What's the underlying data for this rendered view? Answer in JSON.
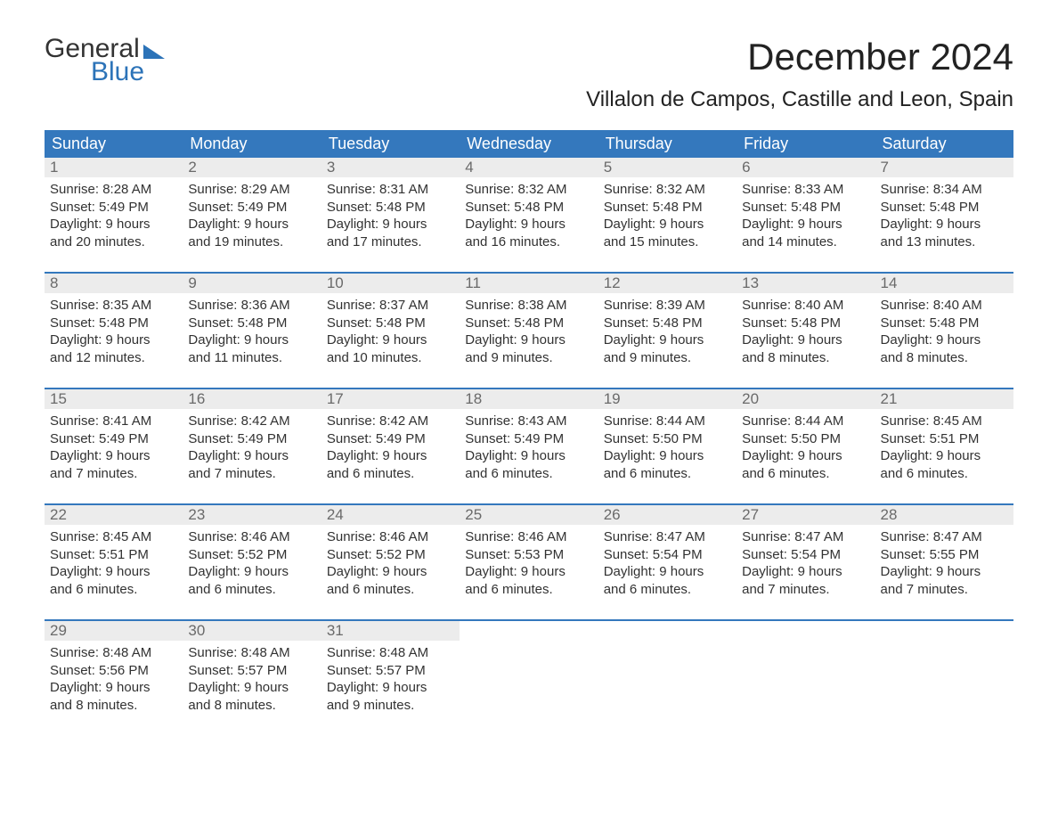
{
  "colors": {
    "brand_blue": "#2c73b8",
    "header_blue": "#3478bd",
    "daynum_bg": "#ececec",
    "daynum_text": "#6a6a6a",
    "body_text": "#323232",
    "title_text": "#222222",
    "logo_dark": "#333333",
    "background": "#ffffff"
  },
  "typography": {
    "month_title_pt": 42,
    "location_pt": 24,
    "weekday_pt": 18,
    "daynum_pt": 17,
    "body_pt": 15,
    "logo_pt": 30,
    "font_family": "Arial"
  },
  "logo": {
    "word1": "General",
    "word2": "Blue"
  },
  "title": "December 2024",
  "location": "Villalon de Campos, Castille and Leon, Spain",
  "weekdays": [
    "Sunday",
    "Monday",
    "Tuesday",
    "Wednesday",
    "Thursday",
    "Friday",
    "Saturday"
  ],
  "weeks": [
    [
      {
        "n": "1",
        "sunrise": "Sunrise: 8:28 AM",
        "sunset": "Sunset: 5:49 PM",
        "d1": "Daylight: 9 hours",
        "d2": "and 20 minutes."
      },
      {
        "n": "2",
        "sunrise": "Sunrise: 8:29 AM",
        "sunset": "Sunset: 5:49 PM",
        "d1": "Daylight: 9 hours",
        "d2": "and 19 minutes."
      },
      {
        "n": "3",
        "sunrise": "Sunrise: 8:31 AM",
        "sunset": "Sunset: 5:48 PM",
        "d1": "Daylight: 9 hours",
        "d2": "and 17 minutes."
      },
      {
        "n": "4",
        "sunrise": "Sunrise: 8:32 AM",
        "sunset": "Sunset: 5:48 PM",
        "d1": "Daylight: 9 hours",
        "d2": "and 16 minutes."
      },
      {
        "n": "5",
        "sunrise": "Sunrise: 8:32 AM",
        "sunset": "Sunset: 5:48 PM",
        "d1": "Daylight: 9 hours",
        "d2": "and 15 minutes."
      },
      {
        "n": "6",
        "sunrise": "Sunrise: 8:33 AM",
        "sunset": "Sunset: 5:48 PM",
        "d1": "Daylight: 9 hours",
        "d2": "and 14 minutes."
      },
      {
        "n": "7",
        "sunrise": "Sunrise: 8:34 AM",
        "sunset": "Sunset: 5:48 PM",
        "d1": "Daylight: 9 hours",
        "d2": "and 13 minutes."
      }
    ],
    [
      {
        "n": "8",
        "sunrise": "Sunrise: 8:35 AM",
        "sunset": "Sunset: 5:48 PM",
        "d1": "Daylight: 9 hours",
        "d2": "and 12 minutes."
      },
      {
        "n": "9",
        "sunrise": "Sunrise: 8:36 AM",
        "sunset": "Sunset: 5:48 PM",
        "d1": "Daylight: 9 hours",
        "d2": "and 11 minutes."
      },
      {
        "n": "10",
        "sunrise": "Sunrise: 8:37 AM",
        "sunset": "Sunset: 5:48 PM",
        "d1": "Daylight: 9 hours",
        "d2": "and 10 minutes."
      },
      {
        "n": "11",
        "sunrise": "Sunrise: 8:38 AM",
        "sunset": "Sunset: 5:48 PM",
        "d1": "Daylight: 9 hours",
        "d2": "and 9 minutes."
      },
      {
        "n": "12",
        "sunrise": "Sunrise: 8:39 AM",
        "sunset": "Sunset: 5:48 PM",
        "d1": "Daylight: 9 hours",
        "d2": "and 9 minutes."
      },
      {
        "n": "13",
        "sunrise": "Sunrise: 8:40 AM",
        "sunset": "Sunset: 5:48 PM",
        "d1": "Daylight: 9 hours",
        "d2": "and 8 minutes."
      },
      {
        "n": "14",
        "sunrise": "Sunrise: 8:40 AM",
        "sunset": "Sunset: 5:48 PM",
        "d1": "Daylight: 9 hours",
        "d2": "and 8 minutes."
      }
    ],
    [
      {
        "n": "15",
        "sunrise": "Sunrise: 8:41 AM",
        "sunset": "Sunset: 5:49 PM",
        "d1": "Daylight: 9 hours",
        "d2": "and 7 minutes."
      },
      {
        "n": "16",
        "sunrise": "Sunrise: 8:42 AM",
        "sunset": "Sunset: 5:49 PM",
        "d1": "Daylight: 9 hours",
        "d2": "and 7 minutes."
      },
      {
        "n": "17",
        "sunrise": "Sunrise: 8:42 AM",
        "sunset": "Sunset: 5:49 PM",
        "d1": "Daylight: 9 hours",
        "d2": "and 6 minutes."
      },
      {
        "n": "18",
        "sunrise": "Sunrise: 8:43 AM",
        "sunset": "Sunset: 5:49 PM",
        "d1": "Daylight: 9 hours",
        "d2": "and 6 minutes."
      },
      {
        "n": "19",
        "sunrise": "Sunrise: 8:44 AM",
        "sunset": "Sunset: 5:50 PM",
        "d1": "Daylight: 9 hours",
        "d2": "and 6 minutes."
      },
      {
        "n": "20",
        "sunrise": "Sunrise: 8:44 AM",
        "sunset": "Sunset: 5:50 PM",
        "d1": "Daylight: 9 hours",
        "d2": "and 6 minutes."
      },
      {
        "n": "21",
        "sunrise": "Sunrise: 8:45 AM",
        "sunset": "Sunset: 5:51 PM",
        "d1": "Daylight: 9 hours",
        "d2": "and 6 minutes."
      }
    ],
    [
      {
        "n": "22",
        "sunrise": "Sunrise: 8:45 AM",
        "sunset": "Sunset: 5:51 PM",
        "d1": "Daylight: 9 hours",
        "d2": "and 6 minutes."
      },
      {
        "n": "23",
        "sunrise": "Sunrise: 8:46 AM",
        "sunset": "Sunset: 5:52 PM",
        "d1": "Daylight: 9 hours",
        "d2": "and 6 minutes."
      },
      {
        "n": "24",
        "sunrise": "Sunrise: 8:46 AM",
        "sunset": "Sunset: 5:52 PM",
        "d1": "Daylight: 9 hours",
        "d2": "and 6 minutes."
      },
      {
        "n": "25",
        "sunrise": "Sunrise: 8:46 AM",
        "sunset": "Sunset: 5:53 PM",
        "d1": "Daylight: 9 hours",
        "d2": "and 6 minutes."
      },
      {
        "n": "26",
        "sunrise": "Sunrise: 8:47 AM",
        "sunset": "Sunset: 5:54 PM",
        "d1": "Daylight: 9 hours",
        "d2": "and 6 minutes."
      },
      {
        "n": "27",
        "sunrise": "Sunrise: 8:47 AM",
        "sunset": "Sunset: 5:54 PM",
        "d1": "Daylight: 9 hours",
        "d2": "and 7 minutes."
      },
      {
        "n": "28",
        "sunrise": "Sunrise: 8:47 AM",
        "sunset": "Sunset: 5:55 PM",
        "d1": "Daylight: 9 hours",
        "d2": "and 7 minutes."
      }
    ],
    [
      {
        "n": "29",
        "sunrise": "Sunrise: 8:48 AM",
        "sunset": "Sunset: 5:56 PM",
        "d1": "Daylight: 9 hours",
        "d2": "and 8 minutes."
      },
      {
        "n": "30",
        "sunrise": "Sunrise: 8:48 AM",
        "sunset": "Sunset: 5:57 PM",
        "d1": "Daylight: 9 hours",
        "d2": "and 8 minutes."
      },
      {
        "n": "31",
        "sunrise": "Sunrise: 8:48 AM",
        "sunset": "Sunset: 5:57 PM",
        "d1": "Daylight: 9 hours",
        "d2": "and 9 minutes."
      },
      {
        "empty": true
      },
      {
        "empty": true
      },
      {
        "empty": true
      },
      {
        "empty": true
      }
    ]
  ]
}
